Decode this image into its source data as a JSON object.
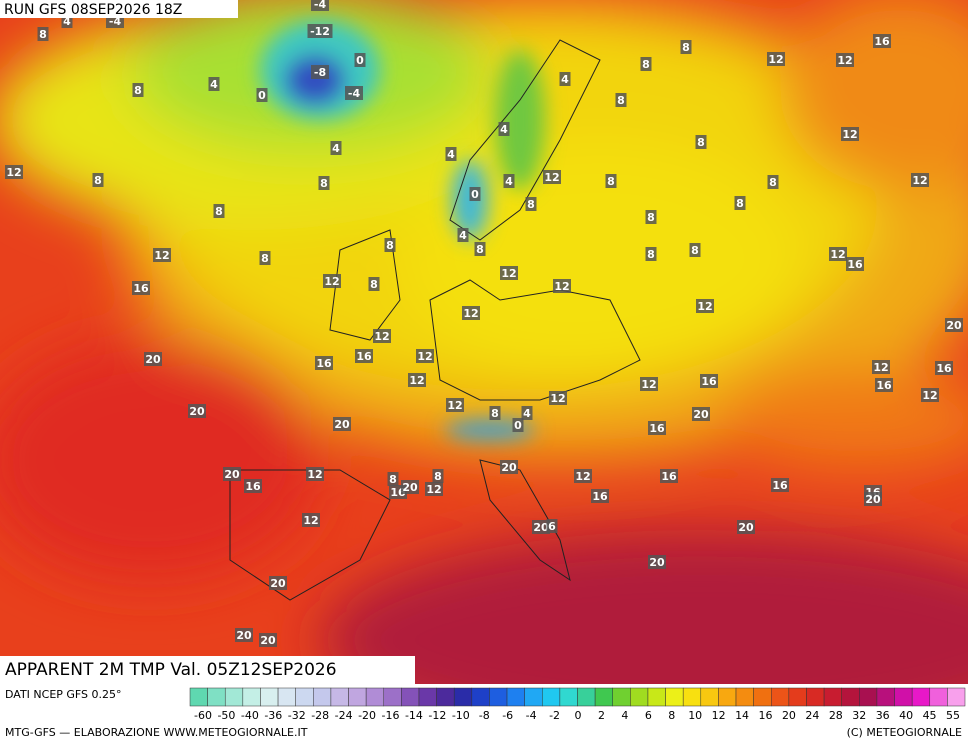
{
  "header": {
    "run": "RUN GFS 08SEP2026 18Z"
  },
  "title": "APPARENT 2M TMP Val. 05Z12SEP2026",
  "source": "DATI NCEP GFS 0.25°",
  "footer": {
    "left": "MTG-GFS — ELABORAZIONE WWW.METEOGIORNALE.IT",
    "right": "(C) METEOGIORNALE"
  },
  "legend": {
    "labels": [
      -60,
      -50,
      -40,
      -36,
      -32,
      -28,
      -24,
      -20,
      -16,
      -14,
      -12,
      -10,
      -8,
      -6,
      -4,
      -2,
      0,
      2,
      4,
      6,
      8,
      10,
      12,
      14,
      16,
      20,
      24,
      28,
      32,
      36,
      40,
      45,
      55
    ],
    "colors": [
      "#5fd8b0",
      "#7fe0c4",
      "#a2e8d6",
      "#c4efe6",
      "#d8efef",
      "#d8e6f2",
      "#ccd8f0",
      "#c4c8ec",
      "#c6b8e6",
      "#c0a6e0",
      "#b08cd6",
      "#9c70c8",
      "#8452b8",
      "#6a38a8",
      "#4c2a9c",
      "#2a2ca8",
      "#1e40c8",
      "#1e5ee0",
      "#1e80f0",
      "#20a8f4",
      "#20c8f0",
      "#30d8d0",
      "#38d09a",
      "#40c850",
      "#70d030",
      "#a0dc20",
      "#c8e818",
      "#ecf018",
      "#f8e010",
      "#f8c810",
      "#f8a810",
      "#f48c10",
      "#f07010",
      "#ec5418",
      "#e43c1c",
      "#d82a24",
      "#c81c30",
      "#b4143c",
      "#a81050",
      "#b8107c",
      "#d010a8",
      "#e818c8",
      "#f060dc",
      "#f8a0ec"
    ]
  },
  "map": {
    "labels": [
      8,
      4,
      -4,
      -4,
      -12,
      -8,
      0,
      0,
      -4,
      4,
      8,
      4,
      12,
      8,
      8,
      8,
      4,
      4,
      4,
      8,
      8,
      8,
      16,
      12,
      12,
      12,
      8,
      0,
      4,
      12,
      8,
      8,
      12,
      8,
      8,
      8,
      4,
      8,
      8,
      8,
      8,
      12,
      16,
      12,
      8,
      12,
      8,
      12,
      12,
      16,
      12,
      12,
      20,
      12,
      16,
      16,
      12,
      20,
      12,
      12,
      16,
      12,
      16,
      16,
      12,
      20,
      12,
      8,
      4,
      0,
      12,
      20,
      20,
      16,
      20,
      12,
      20,
      16,
      8,
      16,
      20,
      8,
      12,
      12,
      16,
      16,
      16,
      20,
      16,
      12,
      20,
      6,
      20,
      20,
      20,
      20,
      20
    ]
  }
}
